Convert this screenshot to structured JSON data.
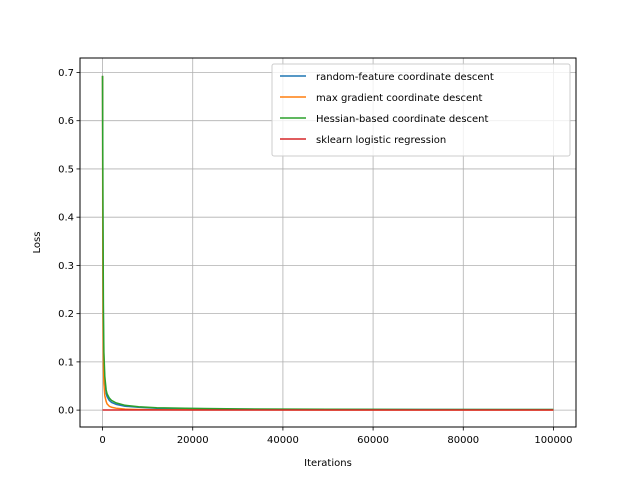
{
  "chart_data": {
    "type": "line",
    "title": "",
    "xlabel": "Iterations",
    "ylabel": "Loss",
    "xlim": [
      -5000,
      105000
    ],
    "ylim": [
      -0.035,
      0.73
    ],
    "xticks": [
      0,
      20000,
      40000,
      60000,
      80000,
      100000
    ],
    "xtick_labels": [
      "0",
      "20000",
      "40000",
      "60000",
      "80000",
      "100000"
    ],
    "yticks": [
      0.0,
      0.1,
      0.2,
      0.3,
      0.4,
      0.5,
      0.6,
      0.7
    ],
    "ytick_labels": [
      "0.0",
      "0.1",
      "0.2",
      "0.3",
      "0.4",
      "0.5",
      "0.6",
      "0.7"
    ],
    "grid": true,
    "legend_position": "top-right",
    "series": [
      {
        "name": "random-feature coordinate descent",
        "color": "#1f77b4",
        "x": [
          0,
          50,
          100,
          200,
          300,
          500,
          800,
          1000,
          1500,
          2000,
          3000,
          5000,
          8000,
          12000,
          20000,
          30000,
          50000,
          70000,
          100000
        ],
        "y": [
          0.693,
          0.45,
          0.3,
          0.16,
          0.1,
          0.06,
          0.035,
          0.028,
          0.02,
          0.016,
          0.012,
          0.008,
          0.006,
          0.004,
          0.003,
          0.002,
          0.0015,
          0.0012,
          0.001
        ]
      },
      {
        "name": "max gradient coordinate descent",
        "color": "#ff7f0e",
        "x": [
          0,
          50,
          100,
          200,
          300,
          500,
          800,
          1000,
          1500,
          2000,
          3000,
          5000,
          8000,
          12000,
          20000,
          30000,
          50000,
          70000,
          100000
        ],
        "y": [
          0.693,
          0.35,
          0.2,
          0.09,
          0.055,
          0.03,
          0.018,
          0.013,
          0.008,
          0.006,
          0.004,
          0.002,
          0.0012,
          0.0008,
          0.0005,
          0.0004,
          0.0003,
          0.0002,
          0.0002
        ]
      },
      {
        "name": "Hessian-based coordinate descent",
        "color": "#2ca02c",
        "x": [
          0,
          50,
          100,
          200,
          300,
          500,
          800,
          1000,
          1500,
          2000,
          3000,
          5000,
          8000,
          12000,
          20000,
          30000,
          50000,
          70000,
          100000
        ],
        "y": [
          0.693,
          0.55,
          0.4,
          0.2,
          0.12,
          0.07,
          0.042,
          0.034,
          0.025,
          0.02,
          0.015,
          0.01,
          0.007,
          0.005,
          0.0035,
          0.0025,
          0.0018,
          0.0014,
          0.0012
        ]
      },
      {
        "name": "sklearn logistic regression",
        "color": "#d62728",
        "x": [
          0,
          100000
        ],
        "y": [
          0.0002,
          0.0002
        ]
      }
    ]
  }
}
